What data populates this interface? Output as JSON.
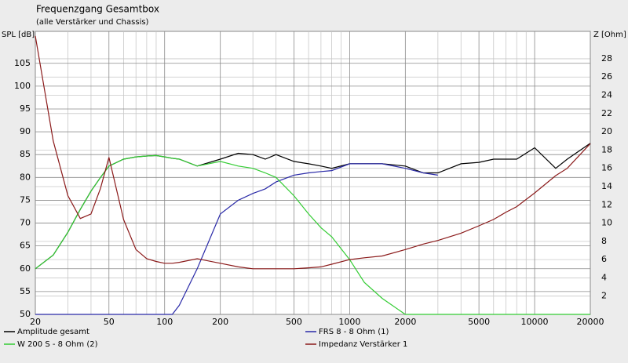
{
  "chart_data": {
    "type": "line",
    "title": "Frequenzgang Gesamtbox",
    "subtitle": "(alle Verstärker und Chassis)",
    "ylabel": "SPL [dB]",
    "y2label": "Z [Ohm]",
    "xscale": "log",
    "grid": true,
    "x": [
      20,
      25,
      30,
      35,
      40,
      45,
      50,
      60,
      70,
      80,
      90,
      100,
      110,
      120,
      150,
      200,
      250,
      300,
      350,
      400,
      500,
      600,
      700,
      800,
      1000,
      1200,
      1500,
      2000,
      2500,
      3000,
      4000,
      5000,
      6000,
      7000,
      8000,
      10000,
      13000,
      15000,
      20000
    ],
    "xlim": [
      20,
      20000
    ],
    "xticks": [
      20,
      50,
      100,
      200,
      500,
      1000,
      2000,
      5000,
      10000,
      20000
    ],
    "xgrid": [
      30,
      40,
      60,
      70,
      80,
      90,
      300,
      400,
      600,
      700,
      800,
      900,
      3000,
      4000,
      6000,
      7000,
      8000,
      9000
    ],
    "ylim": [
      50,
      112
    ],
    "yticks": [
      50,
      55,
      60,
      65,
      70,
      75,
      80,
      85,
      90,
      95,
      100,
      105
    ],
    "y2lim": [
      0,
      31
    ],
    "y2ticks": [
      2,
      4,
      6,
      8,
      10,
      12,
      14,
      16,
      18,
      20,
      22,
      24,
      26,
      28
    ],
    "series": [
      {
        "name": "Amplitude gesamt",
        "color": "#000000",
        "values": [
          60,
          63,
          68,
          73,
          77,
          80,
          82.5,
          84,
          84.5,
          84.7,
          84.8,
          84.5,
          84.2,
          84,
          82.5,
          84,
          85.3,
          85,
          84,
          85,
          83.5,
          83,
          82.5,
          82,
          83,
          83,
          83,
          82.5,
          81,
          81,
          83,
          83.3,
          84,
          84,
          84,
          86.5,
          82,
          84,
          87.5
        ]
      },
      {
        "name": "FRS 8 - 8 Ohm (1)",
        "color": "#2a2aa8",
        "values": [
          50,
          50,
          50,
          50,
          50,
          50,
          50,
          50,
          50,
          50,
          50,
          50,
          50,
          52,
          60,
          72,
          75,
          76.5,
          77.5,
          79,
          80.5,
          81,
          81.3,
          81.5,
          83,
          83,
          83,
          82,
          81,
          80.5,
          null,
          null,
          null,
          null,
          null,
          null,
          null,
          null,
          null
        ]
      },
      {
        "name": "W 200 S - 8 Ohm (2)",
        "color": "#33cc33",
        "values": [
          60,
          63,
          68,
          73,
          77,
          80,
          82.5,
          84,
          84.5,
          84.7,
          84.8,
          84.5,
          84.2,
          84,
          82.5,
          83.5,
          82.5,
          82,
          81,
          80,
          76,
          72,
          69,
          67,
          62,
          57,
          53.5,
          50,
          50,
          50,
          50,
          50,
          50,
          50,
          50,
          50,
          50,
          50,
          50
        ]
      },
      {
        "name": "Impedanz Verstärker 1",
        "color": "#8b1a1a",
        "axis": "y2",
        "values": [
          30.5,
          19,
          13,
          10.5,
          11,
          13.8,
          17.2,
          10.4,
          7.1,
          6.1,
          5.8,
          5.6,
          5.6,
          5.7,
          6.1,
          5.6,
          5.2,
          5.0,
          5.0,
          5.0,
          5.0,
          5.1,
          5.2,
          5.5,
          6.0,
          6.2,
          6.4,
          7.1,
          7.7,
          8.1,
          8.9,
          9.7,
          10.4,
          11.2,
          11.8,
          13.3,
          15.2,
          16,
          18.7
        ]
      }
    ]
  }
}
